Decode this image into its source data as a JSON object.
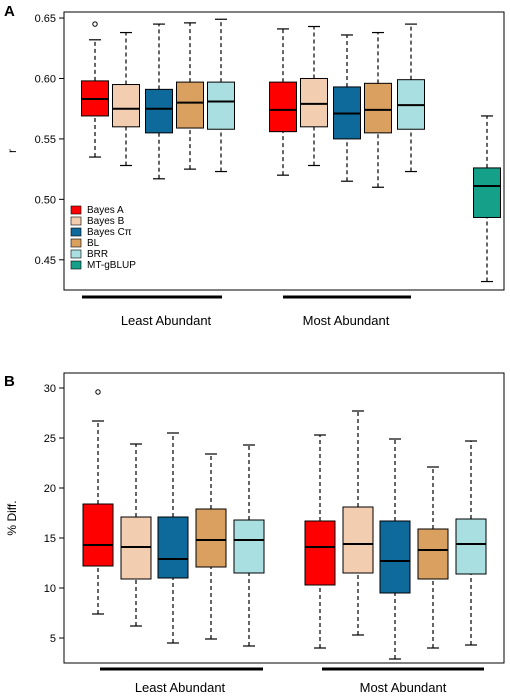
{
  "chart_data": [
    {
      "panel_label": "A",
      "type": "boxplot",
      "ylabel": "r",
      "ylim": [
        0.425,
        0.655
      ],
      "yticks": [
        0.45,
        0.5,
        0.55,
        0.6,
        0.65
      ],
      "ytick_labels": [
        "0.45",
        "0.50",
        "0.55",
        "0.60",
        "0.65"
      ],
      "group_labels": [
        "Least Abundant",
        "Most Abundant"
      ],
      "legend": {
        "position": "bottom-left",
        "entries": [
          {
            "label": "Bayes A",
            "color": "#ff0000"
          },
          {
            "label": "Bayes B",
            "color": "#f2cdb0"
          },
          {
            "label": "Bayes Cπ",
            "color": "#0f6a9c"
          },
          {
            "label": "BL",
            "color": "#d9a05f"
          },
          {
            "label": "BRR",
            "color": "#a9dfe0"
          },
          {
            "label": "MT-gBLUP",
            "color": "#15a08a"
          }
        ]
      },
      "boxes": [
        {
          "group": "Least Abundant",
          "method": "Bayes A",
          "color": "#ff0000",
          "whisker_low": 0.535,
          "q1": 0.569,
          "median": 0.583,
          "q3": 0.598,
          "whisker_high": 0.632,
          "outliers": [
            0.645
          ]
        },
        {
          "group": "Least Abundant",
          "method": "Bayes B",
          "color": "#f2cdb0",
          "whisker_low": 0.528,
          "q1": 0.56,
          "median": 0.575,
          "q3": 0.595,
          "whisker_high": 0.638,
          "outliers": []
        },
        {
          "group": "Least Abundant",
          "method": "Bayes Cπ",
          "color": "#0f6a9c",
          "whisker_low": 0.517,
          "q1": 0.555,
          "median": 0.575,
          "q3": 0.591,
          "whisker_high": 0.645,
          "outliers": []
        },
        {
          "group": "Least Abundant",
          "method": "BL",
          "color": "#d9a05f",
          "whisker_low": 0.525,
          "q1": 0.559,
          "median": 0.58,
          "q3": 0.597,
          "whisker_high": 0.646,
          "outliers": []
        },
        {
          "group": "Least Abundant",
          "method": "BRR",
          "color": "#a9dfe0",
          "whisker_low": 0.523,
          "q1": 0.558,
          "median": 0.581,
          "q3": 0.597,
          "whisker_high": 0.649,
          "outliers": []
        },
        {
          "group": "Most Abundant",
          "method": "Bayes A",
          "color": "#ff0000",
          "whisker_low": 0.52,
          "q1": 0.556,
          "median": 0.574,
          "q3": 0.597,
          "whisker_high": 0.641,
          "outliers": []
        },
        {
          "group": "Most Abundant",
          "method": "Bayes B",
          "color": "#f2cdb0",
          "whisker_low": 0.528,
          "q1": 0.56,
          "median": 0.579,
          "q3": 0.6,
          "whisker_high": 0.643,
          "outliers": []
        },
        {
          "group": "Most Abundant",
          "method": "Bayes Cπ",
          "color": "#0f6a9c",
          "whisker_low": 0.515,
          "q1": 0.55,
          "median": 0.571,
          "q3": 0.593,
          "whisker_high": 0.636,
          "outliers": []
        },
        {
          "group": "Most Abundant",
          "method": "BL",
          "color": "#d9a05f",
          "whisker_low": 0.51,
          "q1": 0.555,
          "median": 0.574,
          "q3": 0.596,
          "whisker_high": 0.638,
          "outliers": []
        },
        {
          "group": "Most Abundant",
          "method": "BRR",
          "color": "#a9dfe0",
          "whisker_low": 0.523,
          "q1": 0.558,
          "median": 0.578,
          "q3": 0.599,
          "whisker_high": 0.645,
          "outliers": []
        },
        {
          "group": "",
          "method": "MT-gBLUP",
          "color": "#15a08a",
          "whisker_low": 0.432,
          "q1": 0.485,
          "median": 0.511,
          "q3": 0.526,
          "whisker_high": 0.569,
          "outliers": []
        }
      ]
    },
    {
      "panel_label": "B",
      "type": "boxplot",
      "ylabel": "% Diff.",
      "ylim": [
        2.5,
        31.5
      ],
      "yticks": [
        5,
        10,
        15,
        20,
        25,
        30
      ],
      "ytick_labels": [
        "5",
        "10",
        "15",
        "20",
        "25",
        "30"
      ],
      "group_labels": [
        "Least Abundant",
        "Most Abundant"
      ],
      "boxes": [
        {
          "group": "Least Abundant",
          "method": "Bayes A",
          "color": "#ff0000",
          "whisker_low": 7.4,
          "q1": 12.2,
          "median": 14.3,
          "q3": 18.4,
          "whisker_high": 26.7,
          "outliers": [
            29.6
          ]
        },
        {
          "group": "Least Abundant",
          "method": "Bayes B",
          "color": "#f2cdb0",
          "whisker_low": 6.2,
          "q1": 10.9,
          "median": 14.1,
          "q3": 17.1,
          "whisker_high": 24.4,
          "outliers": []
        },
        {
          "group": "Least Abundant",
          "method": "Bayes Cπ",
          "color": "#0f6a9c",
          "whisker_low": 4.5,
          "q1": 11.0,
          "median": 12.9,
          "q3": 17.1,
          "whisker_high": 25.5,
          "outliers": []
        },
        {
          "group": "Least Abundant",
          "method": "BL",
          "color": "#d9a05f",
          "whisker_low": 4.9,
          "q1": 12.1,
          "median": 14.8,
          "q3": 17.9,
          "whisker_high": 23.4,
          "outliers": []
        },
        {
          "group": "Least Abundant",
          "method": "BRR",
          "color": "#a9dfe0",
          "whisker_low": 4.2,
          "q1": 11.5,
          "median": 14.8,
          "q3": 16.8,
          "whisker_high": 24.3,
          "outliers": []
        },
        {
          "group": "Most Abundant",
          "method": "Bayes A",
          "color": "#ff0000",
          "whisker_low": 4.0,
          "q1": 10.3,
          "median": 14.1,
          "q3": 16.7,
          "whisker_high": 25.3,
          "outliers": []
        },
        {
          "group": "Most Abundant",
          "method": "Bayes B",
          "color": "#f2cdb0",
          "whisker_low": 5.3,
          "q1": 11.5,
          "median": 14.4,
          "q3": 18.1,
          "whisker_high": 27.7,
          "outliers": []
        },
        {
          "group": "Most Abundant",
          "method": "Bayes Cπ",
          "color": "#0f6a9c",
          "whisker_low": 2.9,
          "q1": 9.5,
          "median": 12.7,
          "q3": 16.7,
          "whisker_high": 24.9,
          "outliers": []
        },
        {
          "group": "Most Abundant",
          "method": "BL",
          "color": "#d9a05f",
          "whisker_low": 4.0,
          "q1": 10.9,
          "median": 13.8,
          "q3": 15.9,
          "whisker_high": 22.1,
          "outliers": []
        },
        {
          "group": "Most Abundant",
          "method": "BRR",
          "color": "#a9dfe0",
          "whisker_low": 4.3,
          "q1": 11.4,
          "median": 14.4,
          "q3": 16.9,
          "whisker_high": 24.7,
          "outliers": []
        }
      ]
    }
  ]
}
